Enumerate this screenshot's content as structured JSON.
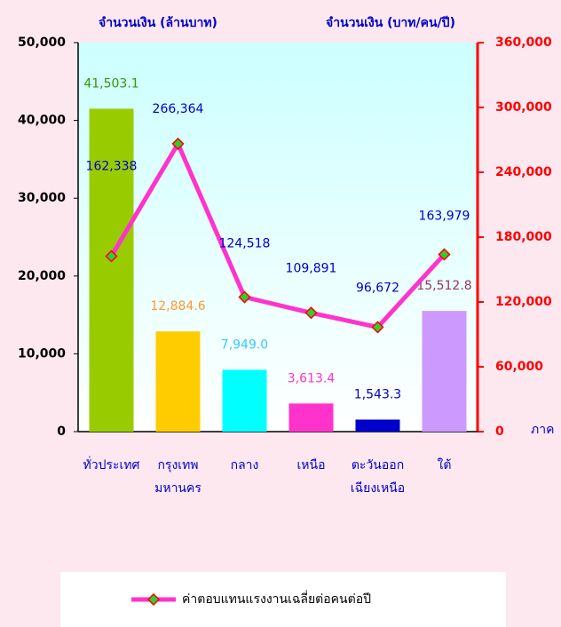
{
  "chart_data": {
    "type": "combo",
    "y_label": "จำนวนเงิน (ล้านบาท)",
    "y2_label": "จำนวนเงิน (บาท/คน/ปี)",
    "x_label": "ภาค",
    "categories": [
      [
        "ทั่วประเทศ"
      ],
      [
        "กรุงเทพ",
        "มหานคร"
      ],
      [
        "กลาง"
      ],
      [
        "เหนือ"
      ],
      [
        "ตะวันออก",
        "เฉียงเหนือ"
      ],
      [
        "ใต้"
      ]
    ],
    "ylim": [
      0,
      50000
    ],
    "yticks": [
      0,
      {
        "value": 10000,
        "label": "10,000"
      },
      {
        "value": 20000,
        "label": "20,000"
      },
      {
        "value": 30000,
        "label": "30,000"
      },
      {
        "value": 40000,
        "label": "40,000"
      },
      {
        "value": 50000,
        "label": "50,000"
      }
    ],
    "y2lim": [
      0,
      360000
    ],
    "y2ticks": [
      0,
      {
        "value": 60000,
        "label": "60,000"
      },
      {
        "value": 120000,
        "label": "120,000"
      },
      {
        "value": 180000,
        "label": "180,000"
      },
      {
        "value": 240000,
        "label": "240,000"
      },
      {
        "value": 300000,
        "label": "300,000"
      },
      {
        "value": 360000,
        "label": "360,000"
      }
    ],
    "series": [
      {
        "type": "bar",
        "values": [
          41503.1,
          12884.6,
          7949.0,
          3613.4,
          1543.3,
          15512.8
        ],
        "value_labels": [
          "41,503.1",
          "12,884.6",
          "7,949.0",
          "3,613.4",
          "1,543.3",
          "15,512.8"
        ],
        "colors": [
          "#99cc00",
          "#ffcc00",
          "#00ffff",
          "#ff33cc",
          "#0000cc",
          "#cc99ff"
        ],
        "label_colors": [
          "#339900",
          "#ff9933",
          "#33ccff",
          "#ff33cc",
          "#0000cc",
          "#993366"
        ]
      },
      {
        "type": "line",
        "name": "ค่าตอบแทนแรงงานเฉลี่ยต่อคนต่อปี",
        "axis": "y2",
        "color": "#ff33cc",
        "marker_color": "#33cc33",
        "marker_edge": "#ff0000",
        "label_color": "#0000cc",
        "values": [
          162338,
          266364,
          124518,
          109891,
          96672,
          163979
        ],
        "value_labels": [
          "162,338",
          "266,364",
          "124,518",
          "109,891",
          "96,672",
          "163,979"
        ]
      }
    ]
  }
}
